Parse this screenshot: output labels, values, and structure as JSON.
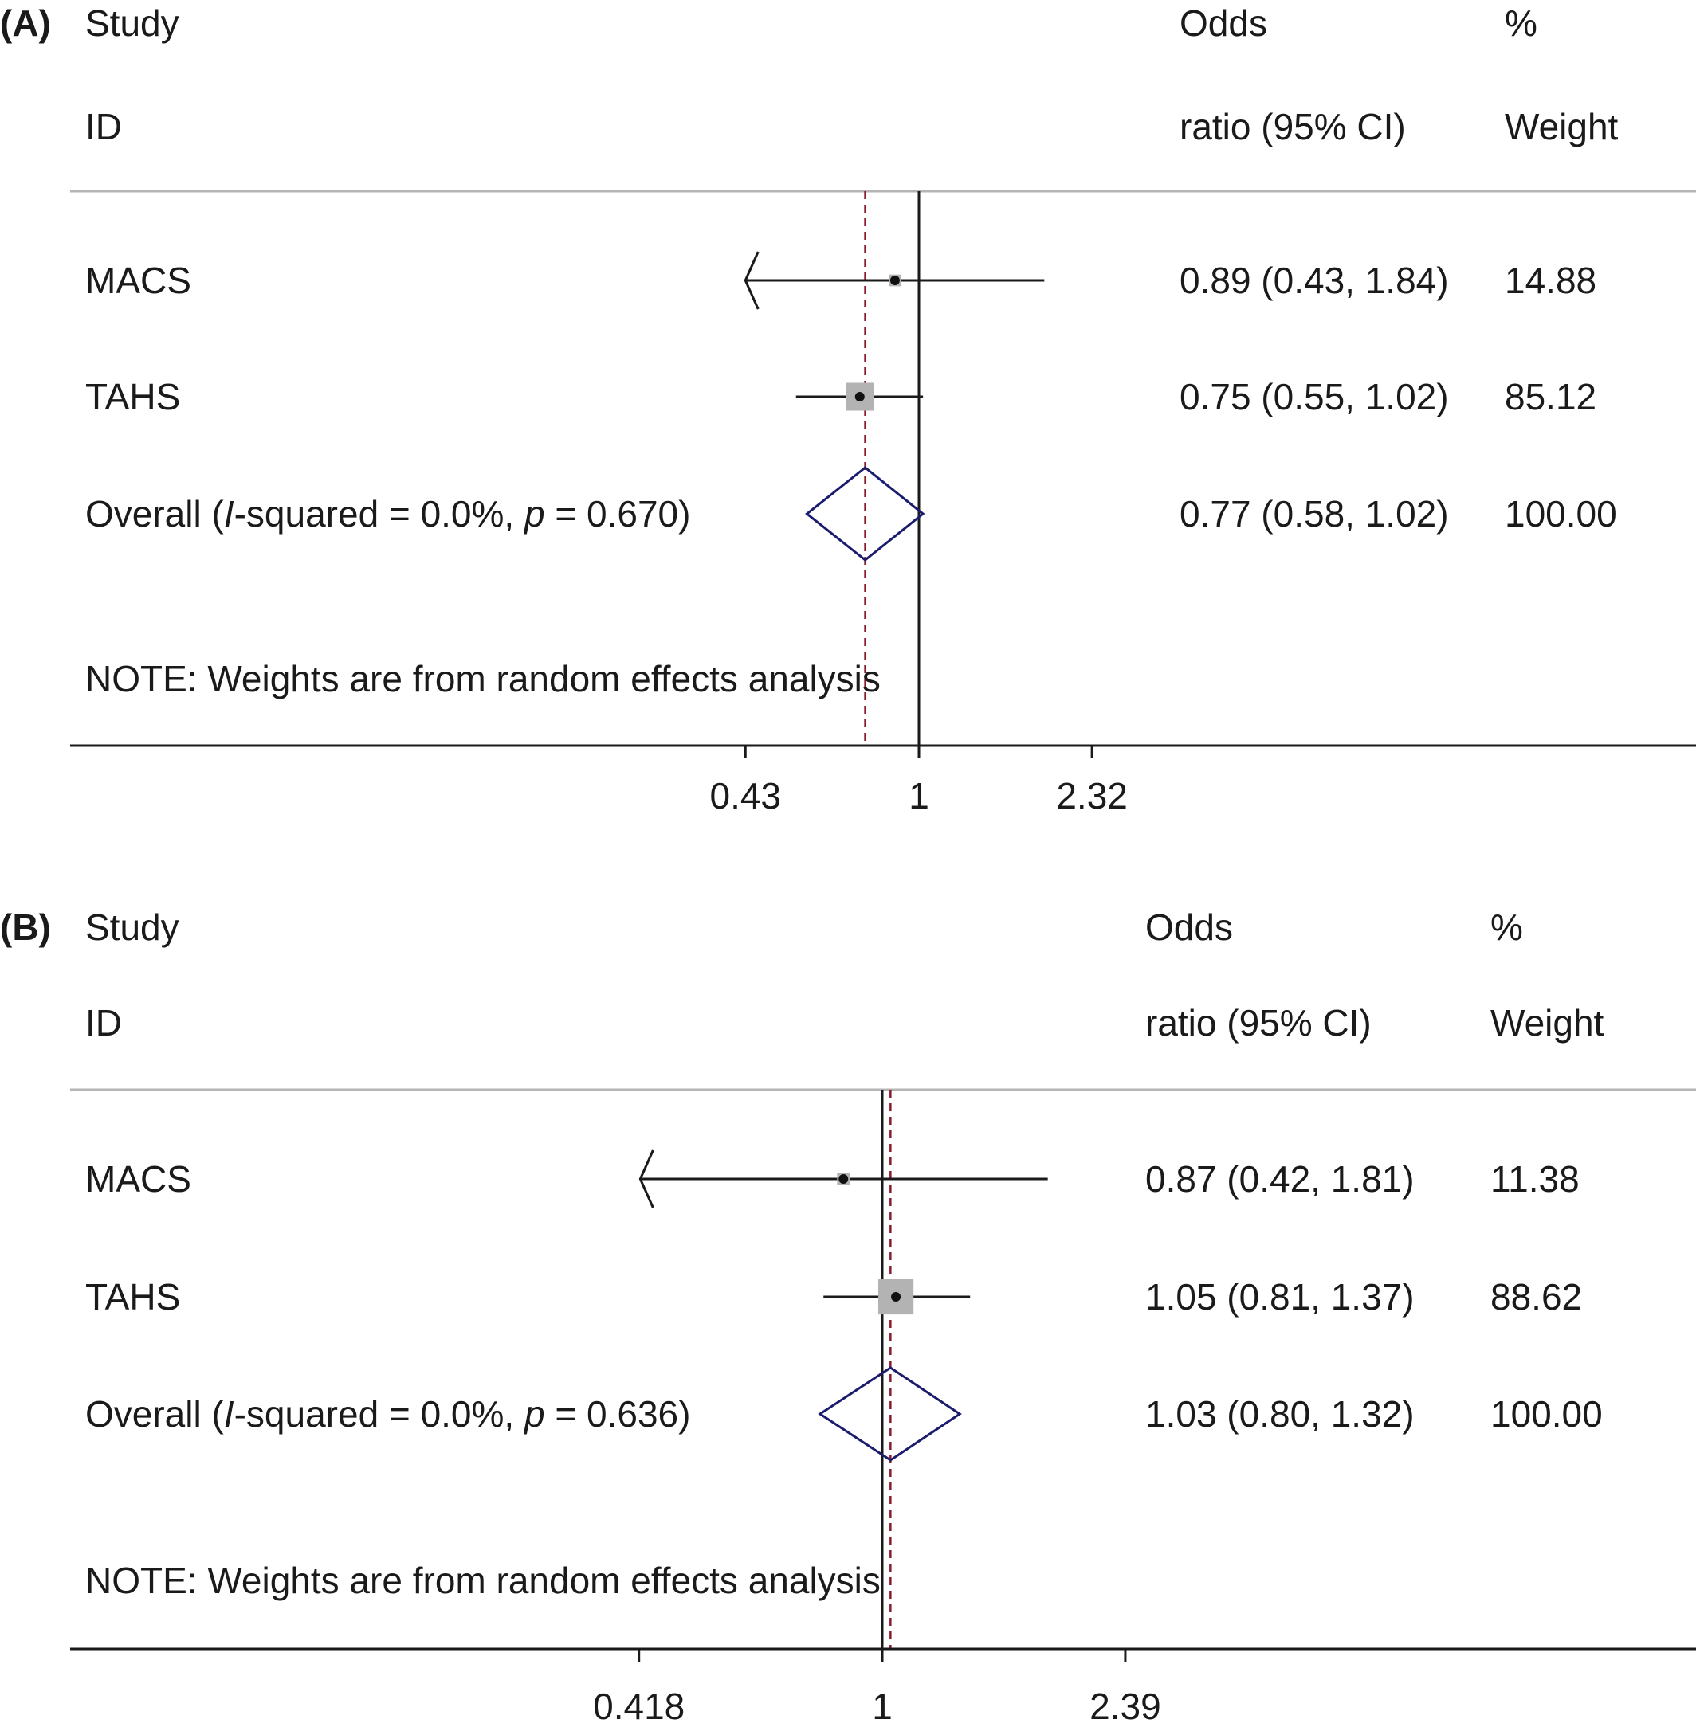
{
  "chart_data": [
    {
      "type": "forest",
      "panel_label": "(A)",
      "headers": {
        "study_line1": "Study",
        "study_line2": "ID",
        "or_line1": "Odds",
        "or_line2": "ratio (95% CI)",
        "weight_line1": "%",
        "weight_line2": "Weight"
      },
      "studies": [
        {
          "label": "MACS",
          "or": 0.89,
          "lower": 0.43,
          "upper": 1.84,
          "or_text": "0.89 (0.43, 1.84)",
          "weight": 14.88,
          "weight_text": "14.88",
          "clipped_left": true
        },
        {
          "label": "TAHS",
          "or": 0.75,
          "lower": 0.55,
          "upper": 1.02,
          "or_text": "0.75 (0.55, 1.02)",
          "weight": 85.12,
          "weight_text": "85.12",
          "clipped_left": false
        }
      ],
      "overall": {
        "label_prefix": "Overall  (",
        "label_i": "I",
        "label_mid": "-squared = 0.0%, ",
        "label_p": "p",
        "label_suffix": " = 0.670)",
        "or": 0.77,
        "lower": 0.58,
        "upper": 1.02,
        "or_text": "0.77 (0.58, 1.02)",
        "weight_text": "100.00"
      },
      "note": "NOTE: Weights are from random effects analysis",
      "xticks": [
        {
          "value": 0.43,
          "label": "0.43"
        },
        {
          "value": 1,
          "label": "1"
        },
        {
          "value": 2.32,
          "label": "2.32"
        }
      ],
      "xscale": "log",
      "null_line": 1
    },
    {
      "type": "forest",
      "panel_label": "(B)",
      "headers": {
        "study_line1": "Study",
        "study_line2": "ID",
        "or_line1": "Odds",
        "or_line2": "ratio (95% CI)",
        "weight_line1": "%",
        "weight_line2": "Weight"
      },
      "studies": [
        {
          "label": "MACS",
          "or": 0.87,
          "lower": 0.42,
          "upper": 1.81,
          "or_text": "0.87 (0.42, 1.81)",
          "weight": 11.38,
          "weight_text": "11.38",
          "clipped_left": true
        },
        {
          "label": "TAHS",
          "or": 1.05,
          "lower": 0.81,
          "upper": 1.37,
          "or_text": "1.05 (0.81, 1.37)",
          "weight": 88.62,
          "weight_text": "88.62",
          "clipped_left": false
        }
      ],
      "overall": {
        "label_prefix": "Overall  (",
        "label_i": "I",
        "label_mid": "-squared = 0.0%, ",
        "label_p": "p",
        "label_suffix": " = 0.636)",
        "or": 1.03,
        "lower": 0.8,
        "upper": 1.32,
        "or_text": "1.03 (0.80, 1.32)",
        "weight_text": "100.00"
      },
      "note": "NOTE: Weights are from random effects analysis",
      "xticks": [
        {
          "value": 0.418,
          "label": "0.418"
        },
        {
          "value": 1,
          "label": "1"
        },
        {
          "value": 2.39,
          "label": "2.39"
        }
      ],
      "xscale": "log",
      "null_line": 1
    }
  ],
  "colors": {
    "ci_line": "#1a1a1a",
    "weight_box": "#b3b3b3",
    "diamond": "#1c1c6e",
    "overall_line": "#8b1a2a",
    "null_line": "#1a1a1a",
    "rule": "#b5b5b5"
  }
}
